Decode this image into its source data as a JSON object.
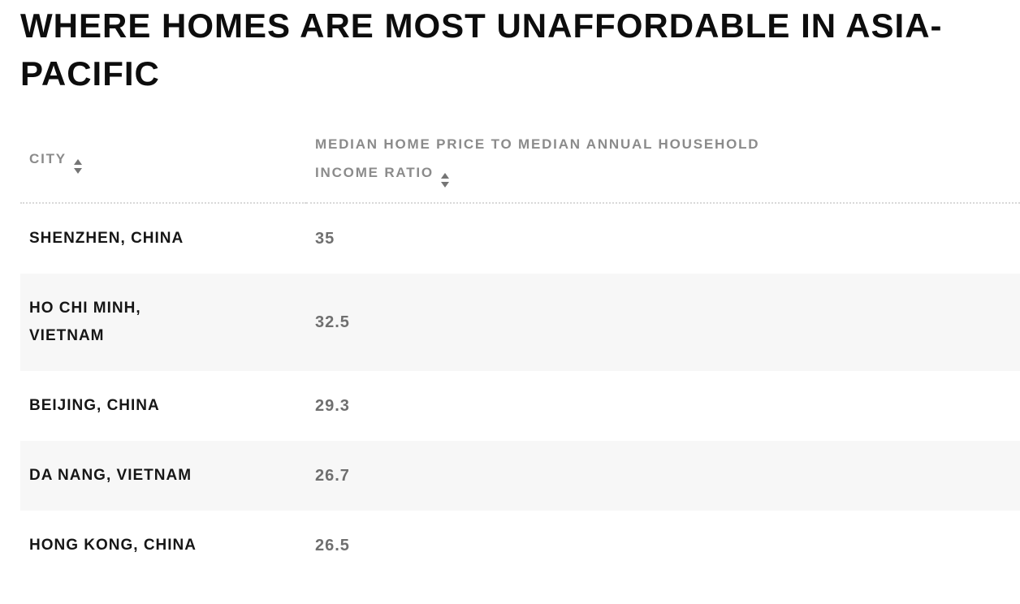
{
  "title": "WHERE HOMES ARE MOST UNAFFORDABLE IN ASIA-PACIFIC",
  "table": {
    "columns": [
      {
        "label": "CITY",
        "sort_icon": "sort-arrows-icon"
      },
      {
        "label": "MEDIAN HOME PRICE TO MEDIAN ANNUAL HOUSEHOLD INCOME RATIO",
        "sort_icon": "sort-arrows-icon"
      }
    ],
    "rows": [
      {
        "city": "SHENZHEN, CHINA",
        "ratio": "35"
      },
      {
        "city": "HO CHI MINH, VIETNAM",
        "ratio": "32.5"
      },
      {
        "city": "BEIJING, CHINA",
        "ratio": "29.3"
      },
      {
        "city": "DA NANG, VIETNAM",
        "ratio": "26.7"
      },
      {
        "city": "HONG KONG, CHINA",
        "ratio": "26.5"
      }
    ]
  },
  "chart_data": {
    "type": "table",
    "title": "WHERE HOMES ARE MOST UNAFFORDABLE IN ASIA-PACIFIC",
    "columns": [
      "CITY",
      "MEDIAN HOME PRICE TO MEDIAN ANNUAL HOUSEHOLD INCOME RATIO"
    ],
    "categories": [
      "SHENZHEN, CHINA",
      "HO CHI MINH, VIETNAM",
      "BEIJING, CHINA",
      "DA NANG, VIETNAM",
      "HONG KONG, CHINA"
    ],
    "values": [
      35,
      32.5,
      29.3,
      26.7,
      26.5
    ]
  },
  "colors": {
    "title_text": "#0d0d0d",
    "header_text": "#8b8b8b",
    "city_text": "#161616",
    "value_text": "#6f6f6f",
    "row_alt_bg": "#f7f7f7",
    "divider": "#d9d9d9",
    "sort_icon": "#757575",
    "page_bg": "#ffffff"
  }
}
